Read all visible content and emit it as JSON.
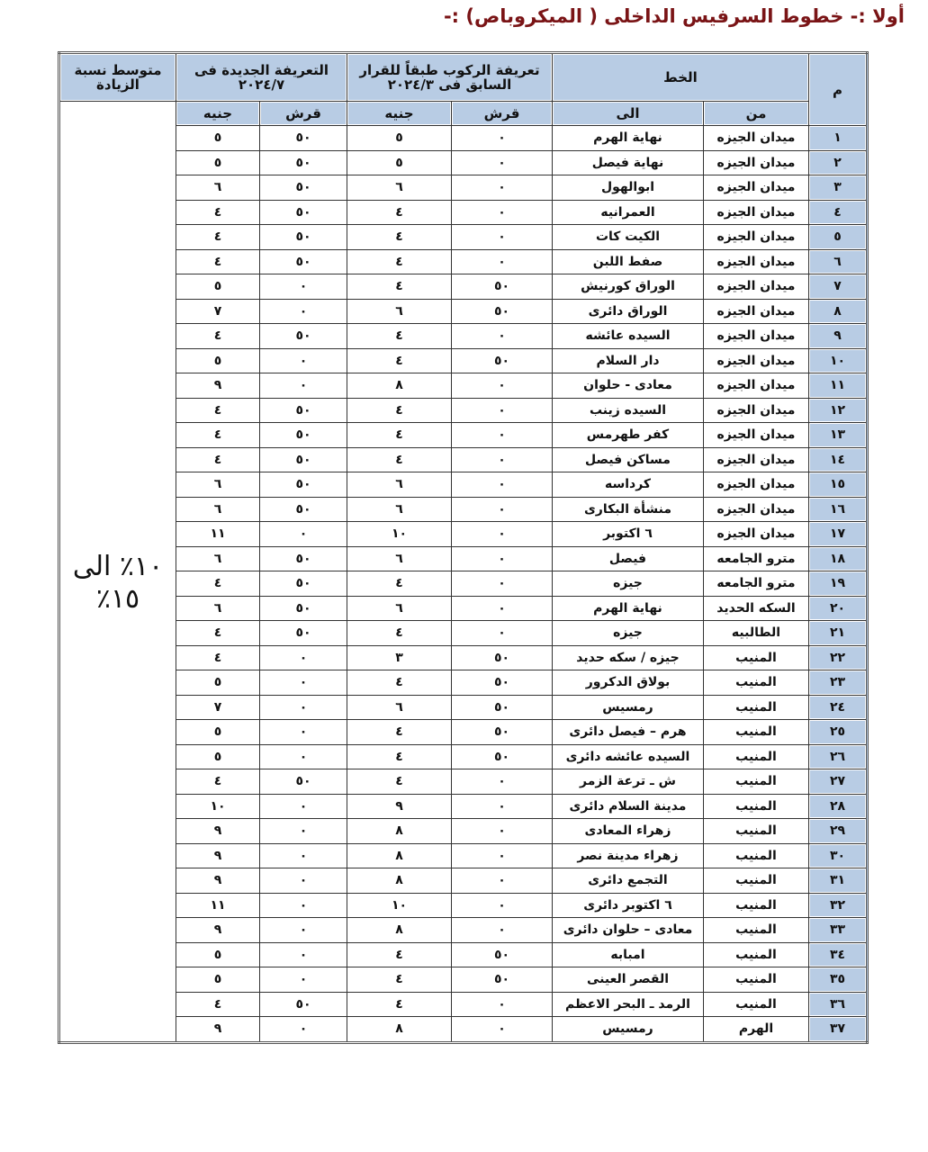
{
  "title": "أولا :- خطوط السرفيس الداخلى ( الميكروباص) :-",
  "headers": {
    "num": "م",
    "line": "الخط",
    "old_fare": "تعريفة الركوب طبقاً للقرار السابق فى ٢٠٢٤/٣",
    "new_fare": "التعريفة الجديدة فى ٢٠٢٤/٧",
    "avg_increase": "متوسط نسبة الزيادة",
    "from": "من",
    "to": "الى",
    "piaster": "قرش",
    "pound": "جنيه"
  },
  "avg_increase_value": "١٠٪ الى ١٥٪",
  "colors": {
    "header_bg": "#b8cce4",
    "title": "#7a1416"
  },
  "rows": [
    [
      "١",
      "ميدان الجيزه",
      "نهاية الهرم",
      "٠",
      "٥",
      "٥٠",
      "٥"
    ],
    [
      "٢",
      "ميدان الجيزه",
      "نهاية فيصل",
      "٠",
      "٥",
      "٥٠",
      "٥"
    ],
    [
      "٣",
      "ميدان الجيزه",
      "ابوالهول",
      "٠",
      "٦",
      "٥٠",
      "٦"
    ],
    [
      "٤",
      "ميدان الجيزه",
      "العمرانيه",
      "٠",
      "٤",
      "٥٠",
      "٤"
    ],
    [
      "٥",
      "ميدان الجيزه",
      "الكيت كات",
      "٠",
      "٤",
      "٥٠",
      "٤"
    ],
    [
      "٦",
      "ميدان الجيزه",
      "صفط اللبن",
      "٠",
      "٤",
      "٥٠",
      "٤"
    ],
    [
      "٧",
      "ميدان الجيزه",
      "الوراق  كورنيش",
      "٥٠",
      "٤",
      "٠",
      "٥"
    ],
    [
      "٨",
      "ميدان الجيزه",
      "الوراق دائرى",
      "٥٠",
      "٦",
      "٠",
      "٧"
    ],
    [
      "٩",
      "ميدان الجيزه",
      "السيده عائشه",
      "٠",
      "٤",
      "٥٠",
      "٤"
    ],
    [
      "١٠",
      "ميدان الجيزه",
      "دار السلام",
      "٥٠",
      "٤",
      "٠",
      "٥"
    ],
    [
      "١١",
      "ميدان الجيزه",
      "معادى - حلوان",
      "٠",
      "٨",
      "٠",
      "٩"
    ],
    [
      "١٢",
      "ميدان الجيزه",
      "السيده زينب",
      "٠",
      "٤",
      "٥٠",
      "٤"
    ],
    [
      "١٣",
      "ميدان الجيزه",
      "كفر طهرمس",
      "٠",
      "٤",
      "٥٠",
      "٤"
    ],
    [
      "١٤",
      "ميدان الجيزه",
      "مساكن فيصل",
      "٠",
      "٤",
      "٥٠",
      "٤"
    ],
    [
      "١٥",
      "ميدان الجيزه",
      "كرداسه",
      "٠",
      "٦",
      "٥٠",
      "٦"
    ],
    [
      "١٦",
      "ميدان الجيزه",
      "منشأة البكارى",
      "٠",
      "٦",
      "٥٠",
      "٦"
    ],
    [
      "١٧",
      "ميدان الجيزه",
      "٦ اكتوبر",
      "٠",
      "١٠",
      "٠",
      "١١"
    ],
    [
      "١٨",
      "مترو الجامعه",
      "فيصل",
      "٠",
      "٦",
      "٥٠",
      "٦"
    ],
    [
      "١٩",
      "مترو الجامعه",
      "جيزه",
      "٠",
      "٤",
      "٥٠",
      "٤"
    ],
    [
      "٢٠",
      "السكه الحديد",
      "نهاية الهرم",
      "٠",
      "٦",
      "٥٠",
      "٦"
    ],
    [
      "٢١",
      "الطالبيه",
      "جيزه",
      "٠",
      "٤",
      "٥٠",
      "٤"
    ],
    [
      "٢٢",
      "المنيب",
      "جيزه / سكه حديد",
      "٥٠",
      "٣",
      "٠",
      "٤"
    ],
    [
      "٢٣",
      "المنيب",
      "بولاق الدكرور",
      "٥٠",
      "٤",
      "٠",
      "٥"
    ],
    [
      "٢٤",
      "المنيب",
      "رمسيس",
      "٥٠",
      "٦",
      "٠",
      "٧"
    ],
    [
      "٢٥",
      "المنيب",
      "هرم – فيصل دائرى",
      "٥٠",
      "٤",
      "٠",
      "٥"
    ],
    [
      "٢٦",
      "المنيب",
      "السيده عائشه دائرى",
      "٥٠",
      "٤",
      "٠",
      "٥"
    ],
    [
      "٢٧",
      "المنيب",
      "ش ـ ترعة الزمر",
      "٠",
      "٤",
      "٥٠",
      "٤"
    ],
    [
      "٢٨",
      "المنيب",
      "مدينة السلام دائرى",
      "٠",
      "٩",
      "٠",
      "١٠"
    ],
    [
      "٢٩",
      "المنيب",
      "زهراء المعادى",
      "٠",
      "٨",
      "٠",
      "٩"
    ],
    [
      "٣٠",
      "المنيب",
      "زهراء مدينة نصر",
      "٠",
      "٨",
      "٠",
      "٩"
    ],
    [
      "٣١",
      "المنيب",
      "التجمع دائرى",
      "٠",
      "٨",
      "٠",
      "٩"
    ],
    [
      "٣٢",
      "المنيب",
      "٦ اكتوبر دائرى",
      "٠",
      "١٠",
      "٠",
      "١١"
    ],
    [
      "٣٣",
      "المنيب",
      "معادى – حلوان دائرى",
      "٠",
      "٨",
      "٠",
      "٩"
    ],
    [
      "٣٤",
      "المنيب",
      "امبابه",
      "٥٠",
      "٤",
      "٠",
      "٥"
    ],
    [
      "٣٥",
      "المنيب",
      "القصر العينى",
      "٥٠",
      "٤",
      "٠",
      "٥"
    ],
    [
      "٣٦",
      "المنيب",
      "الرمد ـ البحر الاعظم",
      "٠",
      "٤",
      "٥٠",
      "٤"
    ],
    [
      "٣٧",
      "الهرم",
      "رمسيس",
      "٠",
      "٨",
      "٠",
      "٩"
    ]
  ]
}
